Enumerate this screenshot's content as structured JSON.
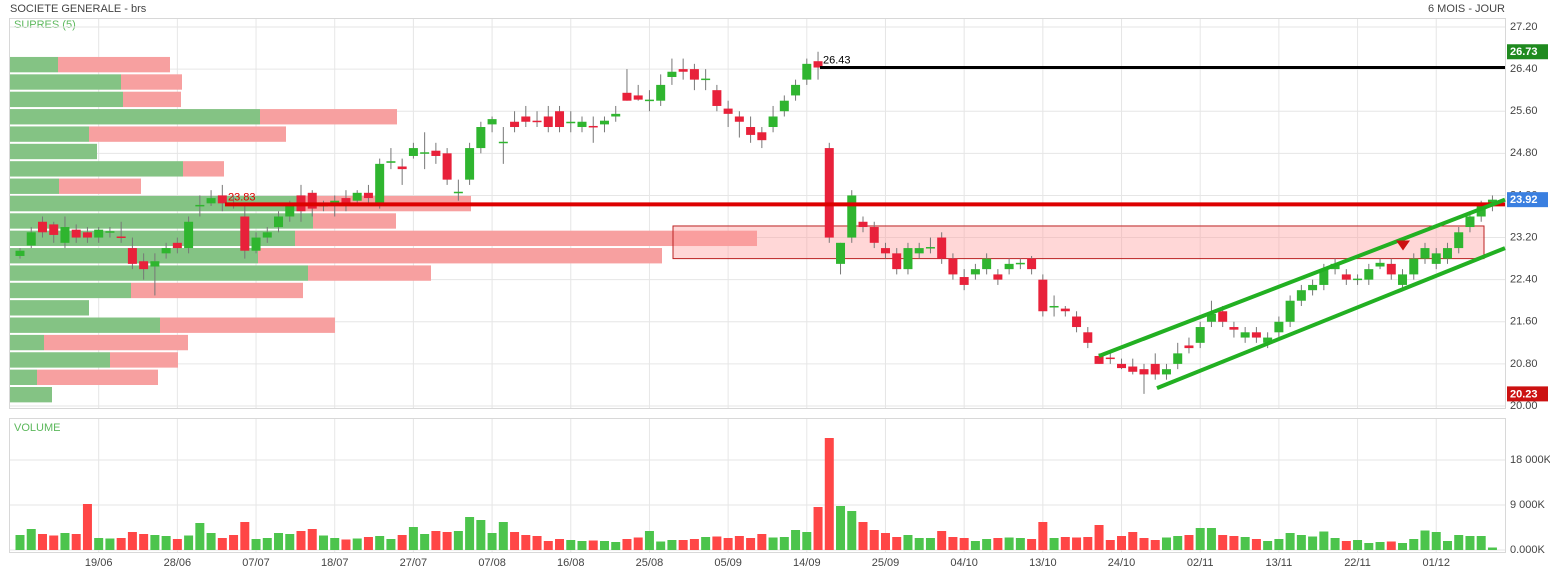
{
  "chart_data": {
    "type": "candlestick",
    "title": "SOCIETE GENERALE - brs",
    "subtitle": "6 MOIS - JOUR",
    "categories": [
      null,
      null,
      null,
      null,
      null,
      null,
      null,
      "19/06",
      null,
      null,
      null,
      null,
      null,
      null,
      "28/06",
      null,
      null,
      null,
      null,
      null,
      null,
      "07/07",
      null,
      null,
      null,
      null,
      null,
      null,
      "18/07",
      null,
      null,
      null,
      null,
      null,
      null,
      "27/07",
      null,
      null,
      null,
      null,
      null,
      null,
      "07/08",
      null,
      null,
      null,
      null,
      null,
      null,
      "16/08",
      null,
      null,
      null,
      null,
      null,
      null,
      "25/08",
      null,
      null,
      null,
      null,
      null,
      null,
      "05/09",
      null,
      null,
      null,
      null,
      null,
      null,
      "14/09",
      null,
      null,
      null,
      null,
      null,
      null,
      "25/09",
      null,
      null,
      null,
      null,
      null,
      null,
      "04/10",
      null,
      null,
      null,
      null,
      null,
      null,
      "13/10",
      null,
      null,
      null,
      null,
      null,
      null,
      "24/10",
      null,
      null,
      null,
      null,
      null,
      null,
      "02/11",
      null,
      null,
      null,
      null,
      null,
      null,
      "13/11",
      null,
      null,
      null,
      null,
      null,
      null,
      "22/11",
      null,
      null,
      null,
      null,
      null,
      null,
      "01/12",
      null,
      null,
      null,
      null,
      null
    ],
    "open": [
      22.85,
      23.05,
      23.5,
      23.45,
      23.1,
      23.35,
      23.3,
      23.2,
      23.3,
      23.22,
      23.0,
      22.75,
      22.65,
      22.9,
      23.1,
      23.0,
      23.8,
      23.85,
      24.0,
      23.85,
      23.6,
      22.95,
      23.2,
      23.4,
      23.6,
      24.0,
      24.05,
      23.8,
      23.85,
      23.95,
      23.9,
      24.05,
      23.8,
      24.62,
      24.55,
      24.75,
      24.8,
      24.85,
      24.8,
      24.05,
      24.3,
      24.9,
      25.35,
      25.0,
      25.4,
      25.5,
      25.42,
      25.5,
      25.6,
      25.38,
      25.3,
      25.32,
      25.35,
      25.5,
      25.95,
      25.9,
      25.8,
      25.8,
      26.25,
      26.4,
      26.4,
      26.2,
      26.0,
      25.65,
      25.5,
      25.3,
      25.2,
      25.3,
      25.6,
      25.9,
      26.2,
      26.55,
      24.9,
      22.7,
      23.2,
      23.5,
      23.4,
      23.0,
      22.9,
      22.6,
      22.9,
      23.0,
      23.2,
      22.8,
      22.45,
      22.5,
      22.6,
      22.5,
      22.6,
      22.7,
      22.8,
      22.4,
      21.88,
      21.85,
      21.7,
      21.4,
      20.95,
      20.92,
      20.8,
      20.75,
      20.7,
      20.8,
      20.6,
      20.8,
      21.15,
      21.2,
      21.6,
      21.8,
      21.5,
      21.3,
      21.4,
      21.2,
      21.4,
      21.6,
      22.0,
      22.2,
      22.3,
      22.6,
      22.5,
      22.4,
      22.4,
      22.65,
      22.7,
      22.3,
      22.5,
      22.8,
      22.7,
      22.8,
      23.0,
      23.4,
      23.6,
      23.8
    ],
    "high": [
      23.0,
      23.4,
      23.6,
      23.5,
      23.6,
      23.45,
      23.4,
      23.4,
      23.4,
      23.5,
      23.2,
      22.9,
      22.9,
      23.1,
      23.2,
      23.6,
      24.0,
      24.1,
      24.2,
      24.0,
      23.8,
      23.3,
      23.4,
      23.7,
      23.9,
      24.2,
      24.1,
      23.9,
      24.0,
      24.1,
      24.1,
      24.2,
      24.7,
      24.9,
      24.7,
      25.0,
      25.2,
      25.0,
      24.9,
      24.3,
      25.0,
      25.4,
      25.5,
      25.3,
      25.6,
      25.7,
      25.6,
      25.7,
      25.7,
      25.6,
      25.5,
      25.5,
      25.5,
      25.7,
      26.4,
      26.1,
      26.0,
      26.3,
      26.6,
      26.6,
      26.5,
      26.4,
      26.1,
      25.8,
      25.6,
      25.5,
      25.3,
      25.7,
      25.9,
      26.2,
      26.6,
      26.73,
      25.0,
      23.1,
      24.1,
      23.6,
      23.5,
      23.1,
      23.0,
      23.1,
      23.1,
      23.2,
      23.3,
      22.9,
      22.6,
      22.7,
      22.9,
      22.6,
      22.8,
      22.8,
      22.85,
      22.5,
      22.1,
      21.9,
      21.8,
      21.5,
      21.0,
      21.0,
      20.9,
      20.9,
      20.8,
      21.0,
      20.8,
      21.2,
      21.3,
      21.6,
      22.0,
      21.9,
      21.6,
      21.5,
      21.5,
      21.4,
      21.7,
      22.1,
      22.3,
      22.4,
      22.7,
      22.8,
      22.6,
      22.5,
      22.7,
      22.8,
      22.8,
      22.6,
      22.9,
      23.1,
      23.0,
      23.1,
      23.4,
      23.7,
      23.9,
      24.0
    ],
    "low": [
      22.8,
      23.0,
      23.2,
      23.1,
      23.0,
      23.1,
      23.1,
      23.1,
      23.2,
      23.1,
      22.6,
      22.4,
      22.1,
      22.8,
      22.9,
      22.9,
      23.6,
      23.8,
      23.7,
      23.75,
      22.8,
      22.9,
      23.1,
      23.3,
      23.5,
      23.5,
      23.6,
      23.7,
      23.6,
      23.7,
      23.8,
      23.8,
      23.75,
      24.5,
      24.2,
      24.7,
      24.5,
      24.6,
      24.2,
      23.9,
      24.2,
      24.8,
      25.2,
      24.6,
      25.2,
      25.3,
      25.3,
      25.2,
      25.2,
      25.2,
      25.2,
      25.0,
      25.2,
      25.4,
      25.8,
      25.8,
      25.6,
      25.7,
      26.1,
      26.2,
      26.0,
      26.0,
      25.6,
      25.3,
      25.1,
      25.0,
      24.9,
      25.2,
      25.5,
      25.8,
      26.1,
      26.2,
      23.1,
      22.5,
      23.1,
      23.3,
      23.0,
      22.8,
      22.5,
      22.5,
      22.8,
      22.9,
      22.7,
      22.4,
      22.2,
      22.4,
      22.5,
      22.3,
      22.5,
      22.6,
      22.5,
      21.7,
      21.7,
      21.7,
      21.4,
      21.1,
      20.8,
      20.8,
      20.7,
      20.6,
      20.23,
      20.5,
      20.5,
      20.7,
      21.0,
      21.1,
      21.5,
      21.5,
      21.3,
      21.2,
      21.2,
      21.1,
      21.3,
      21.5,
      21.9,
      22.1,
      22.2,
      22.5,
      22.3,
      22.3,
      22.3,
      22.6,
      22.4,
      22.2,
      22.4,
      22.7,
      22.6,
      22.7,
      22.9,
      23.3,
      23.5,
      23.7
    ],
    "close": [
      22.95,
      23.3,
      23.3,
      23.25,
      23.4,
      23.2,
      23.2,
      23.35,
      23.32,
      23.2,
      22.7,
      22.6,
      22.75,
      23.0,
      23.0,
      23.5,
      23.82,
      23.95,
      23.85,
      23.8,
      22.95,
      23.2,
      23.3,
      23.6,
      23.8,
      23.7,
      23.75,
      23.82,
      23.9,
      23.85,
      24.05,
      23.95,
      24.6,
      24.65,
      24.5,
      24.9,
      24.82,
      24.75,
      24.3,
      24.07,
      24.9,
      25.3,
      25.45,
      25.02,
      25.3,
      25.4,
      25.4,
      25.3,
      25.3,
      25.4,
      25.4,
      25.3,
      25.42,
      25.55,
      25.8,
      25.82,
      25.82,
      26.1,
      26.35,
      26.35,
      26.2,
      26.22,
      25.7,
      25.55,
      25.4,
      25.15,
      25.05,
      25.5,
      25.8,
      26.1,
      26.5,
      26.43,
      23.2,
      23.1,
      24.0,
      23.4,
      23.1,
      22.9,
      22.6,
      23.0,
      23.0,
      23.02,
      22.8,
      22.5,
      22.3,
      22.6,
      22.8,
      22.4,
      22.7,
      22.72,
      22.6,
      21.8,
      21.9,
      21.8,
      21.5,
      21.2,
      20.8,
      20.9,
      20.72,
      20.65,
      20.6,
      20.6,
      20.7,
      21.0,
      21.1,
      21.5,
      21.75,
      21.6,
      21.45,
      21.4,
      21.3,
      21.3,
      21.6,
      22.0,
      22.2,
      22.3,
      22.6,
      22.7,
      22.4,
      22.42,
      22.6,
      22.72,
      22.5,
      22.5,
      22.8,
      23.0,
      22.9,
      23.0,
      23.3,
      23.6,
      23.8,
      23.92
    ],
    "up_color": "#2fb52f",
    "down_color": "#e8213a",
    "ylim": [
      20.0,
      27.2
    ],
    "yticks": [
      {
        "value": 20.0,
        "label": "20.00"
      },
      {
        "value": 20.8,
        "label": "20.80"
      },
      {
        "value": 21.6,
        "label": "21.60"
      },
      {
        "value": 22.4,
        "label": "22.40"
      },
      {
        "value": 23.2,
        "label": "23.20"
      },
      {
        "value": 24.0,
        "label": "24.00"
      },
      {
        "value": 24.8,
        "label": "24.80"
      },
      {
        "value": 25.6,
        "label": "25.60"
      },
      {
        "value": 26.4,
        "label": "26.40"
      },
      {
        "value": 27.2,
        "label": "27.20"
      }
    ],
    "grid": true,
    "levels": [
      {
        "value": 23.83,
        "color": "#dd0000"
      },
      {
        "value": 26.43,
        "color": "#000000"
      }
    ],
    "zone": {
      "low": 22.8,
      "high": 23.42,
      "color": "#ff9a9a"
    },
    "channel_color": "#22b022",
    "channels": [
      [
        20.95,
        23.92
      ],
      [
        20.34,
        23.0
      ]
    ],
    "signal": {
      "value": 23.05,
      "color": "#cc1111"
    },
    "price_markers": [
      {
        "value": 26.73,
        "color": "#1f8a1f"
      },
      {
        "value": 23.92,
        "color": "#3a7fe0"
      },
      {
        "value": 20.23,
        "color": "#cc1111"
      }
    ],
    "profile": {
      "title": "SUPRES (5)",
      "buy_color": "#84c384",
      "sell_color": "#f7a0a0",
      "bins": [
        20.05,
        20.38,
        20.71,
        21.04,
        21.37,
        21.7,
        22.03,
        22.36,
        22.69,
        23.02,
        23.35,
        23.68,
        24.01,
        24.34,
        24.67,
        25.0,
        25.33,
        25.66,
        25.99,
        26.32,
        26.65
      ],
      "buy": [
        42,
        27,
        100,
        34,
        150,
        79,
        121,
        298,
        248,
        285,
        303,
        293,
        49,
        173,
        87,
        79,
        250,
        113,
        111,
        48
      ],
      "sell": [
        0,
        121,
        68,
        144,
        175,
        0,
        172,
        123,
        404,
        462,
        83,
        168,
        82,
        41,
        0,
        197,
        137,
        58,
        61,
        112
      ]
    },
    "volume": {
      "title": "VOLUME",
      "up_color": "#4cc44c",
      "down_color": "#ff4646",
      "values": [
        3000,
        4200,
        3200,
        2900,
        3400,
        3200,
        9200,
        2400,
        2300,
        2400,
        3600,
        3200,
        3000,
        2800,
        2200,
        2900,
        5400,
        3400,
        2400,
        3000,
        5600,
        2200,
        2400,
        3400,
        3200,
        3800,
        4200,
        2900,
        2400,
        2100,
        2300,
        2600,
        2800,
        2200,
        3000,
        4600,
        3200,
        3800,
        3600,
        3800,
        6600,
        6000,
        3400,
        5600,
        3600,
        3000,
        2800,
        1800,
        2200,
        2000,
        1800,
        1900,
        1800,
        1600,
        2200,
        2500,
        3800,
        1700,
        2000,
        2000,
        2200,
        2600,
        2700,
        2400,
        2800,
        2400,
        3200,
        2500,
        2600,
        4000,
        3600,
        8600,
        22400,
        8800,
        7800,
        5600,
        4000,
        3400,
        2600,
        3000,
        2400,
        2400,
        3800,
        2600,
        2400,
        1800,
        2200,
        2400,
        2500,
        2400,
        2200,
        5600,
        2400,
        2600,
        2500,
        2600,
        5000,
        2000,
        2800,
        3600,
        2400,
        2000,
        2500,
        2800,
        3000,
        4400,
        4400,
        3000,
        2800,
        2600,
        2200,
        1800,
        2200,
        3400,
        3000,
        2700,
        3700,
        2400,
        1800,
        2000,
        1400,
        1600,
        1700,
        1400,
        2200,
        3900,
        3600,
        1800,
        3000,
        2800,
        2800,
        500
      ],
      "ylim": [
        0,
        26000
      ],
      "yticks": [
        {
          "value": 0,
          "label": "0.000K"
        },
        {
          "value": 9000,
          "label": "9 000K"
        },
        {
          "value": 18000,
          "label": "18 000K"
        }
      ]
    }
  }
}
